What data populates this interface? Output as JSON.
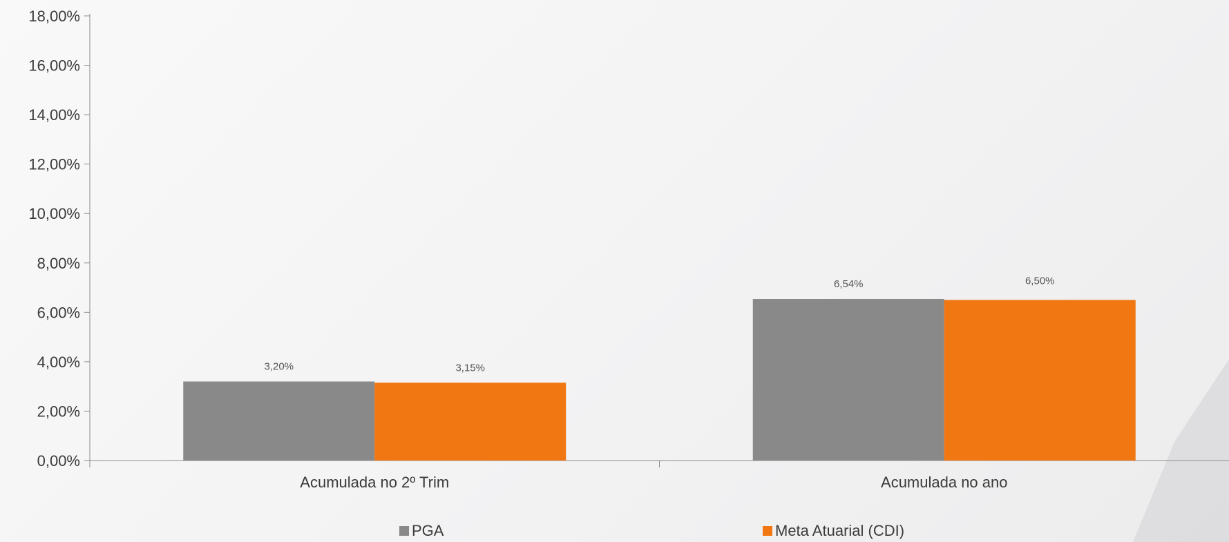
{
  "chart_data": {
    "type": "bar",
    "categories": [
      "Acumulada no 2º Trim",
      "Acumulada no ano"
    ],
    "series": [
      {
        "name": "PGA",
        "color": "#898989",
        "values": [
          3.2,
          6.54
        ],
        "labels": [
          "3,20%",
          "6,54%"
        ]
      },
      {
        "name": "Meta Atuarial (CDI)",
        "color": "#f07712",
        "values": [
          3.15,
          6.5
        ],
        "labels": [
          "3,15%",
          "6,50%"
        ]
      }
    ],
    "ylim": [
      0,
      18
    ],
    "yticks": [
      0,
      2,
      4,
      6,
      8,
      10,
      12,
      14,
      16,
      18
    ],
    "ytick_labels": [
      "0,00%",
      "2,00%",
      "4,00%",
      "6,00%",
      "8,00%",
      "10,00%",
      "12,00%",
      "14,00%",
      "16,00%",
      "18,00%"
    ],
    "grid": false,
    "legend_position": "bottom",
    "title": "",
    "xlabel": "",
    "ylabel": ""
  }
}
